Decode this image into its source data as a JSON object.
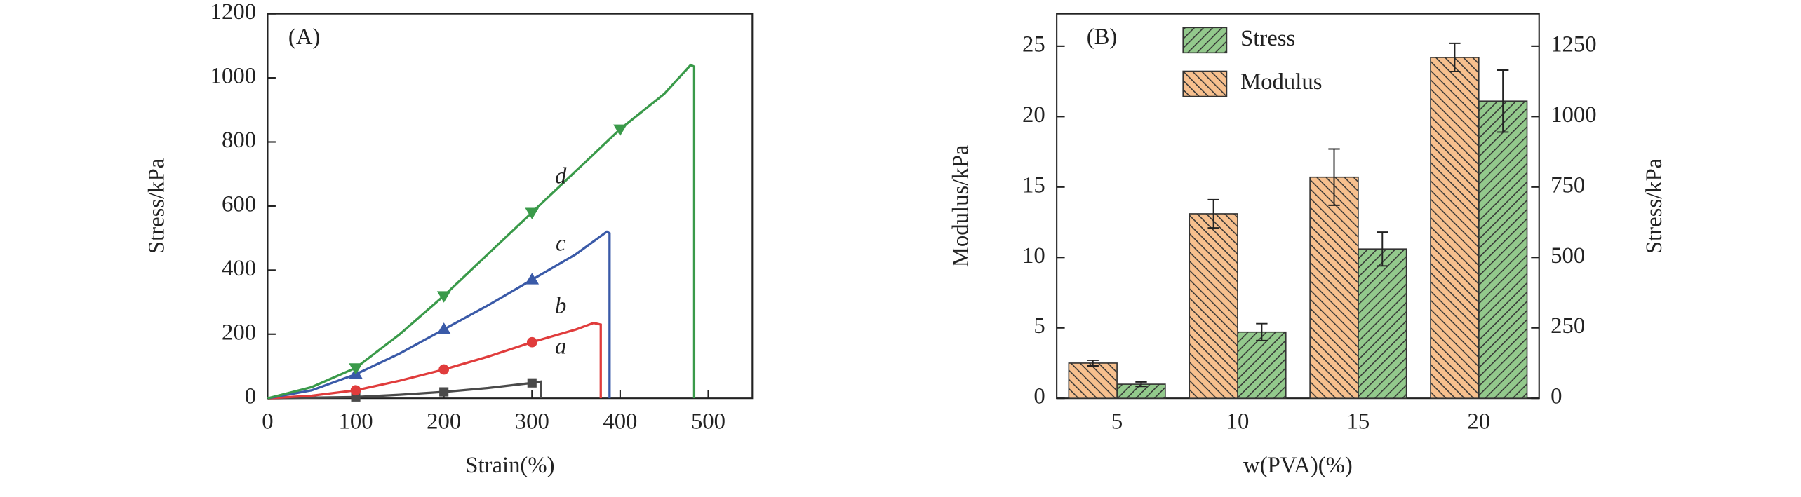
{
  "chart_data": [
    {
      "type": "line",
      "panel_label": "(A)",
      "x_label": "Strain(%)",
      "y_label": "Stress/kPa",
      "xlim": [
        0,
        550
      ],
      "xticks": [
        0,
        100,
        200,
        300,
        400,
        500
      ],
      "ylim": [
        0,
        1200
      ],
      "yticks": [
        0,
        200,
        400,
        600,
        800,
        1000,
        1200
      ],
      "series": [
        {
          "name": "a",
          "color": "#4a4a4a",
          "marker": "square",
          "x": [
            0,
            50,
            100,
            150,
            200,
            250,
            300,
            310,
            310
          ],
          "values": [
            0,
            2,
            4,
            11,
            20,
            32,
            48,
            52,
            0
          ]
        },
        {
          "name": "b",
          "color": "#e03c3c",
          "marker": "circle",
          "x": [
            0,
            50,
            100,
            150,
            200,
            250,
            300,
            350,
            370,
            378,
            378
          ],
          "values": [
            0,
            8,
            25,
            55,
            90,
            130,
            175,
            215,
            235,
            230,
            0
          ]
        },
        {
          "name": "c",
          "color": "#3a5aa8",
          "marker": "triangle-up",
          "x": [
            0,
            50,
            100,
            150,
            200,
            250,
            300,
            350,
            385,
            388,
            388
          ],
          "values": [
            0,
            25,
            75,
            140,
            215,
            290,
            370,
            450,
            520,
            515,
            0
          ]
        },
        {
          "name": "d",
          "color": "#3a9a4a",
          "marker": "triangle-down",
          "x": [
            0,
            50,
            100,
            150,
            200,
            250,
            300,
            350,
            400,
            450,
            480,
            484,
            484
          ],
          "values": [
            0,
            35,
            95,
            200,
            320,
            450,
            580,
            710,
            840,
            950,
            1040,
            1035,
            0
          ]
        }
      ]
    },
    {
      "type": "bar",
      "panel_label": "(B)",
      "x_label": "w(PVA)(%)",
      "y_label": "Modulus/kPa",
      "y2_label": "Stress/kPa",
      "categories": [
        "5",
        "10",
        "15",
        "20"
      ],
      "ylim": [
        0,
        27.3
      ],
      "yticks": [
        0,
        5,
        10,
        15,
        20,
        25
      ],
      "y2lim": [
        0,
        1365
      ],
      "y2ticks": [
        0,
        250,
        500,
        750,
        1000,
        1250
      ],
      "legend": "upper center",
      "series": [
        {
          "name": "Stress",
          "color": "#93c98c",
          "hatch": "/",
          "axis": "y2",
          "values": [
            50,
            235,
            530,
            1055
          ],
          "errors": [
            8,
            30,
            60,
            110
          ]
        },
        {
          "name": "Modulus",
          "color": "#f7c08e",
          "hatch": "\\",
          "values": [
            2.5,
            13.1,
            15.7,
            24.2
          ],
          "errors": [
            0.2,
            1.0,
            2.0,
            1.0
          ]
        }
      ]
    }
  ]
}
